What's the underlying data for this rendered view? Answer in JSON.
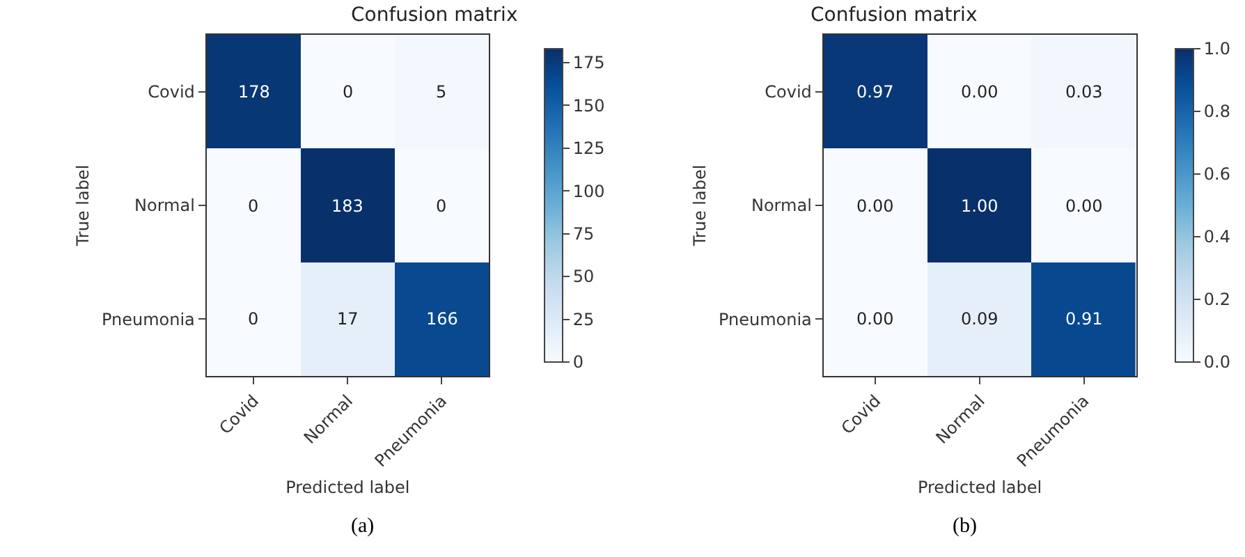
{
  "chart_data": [
    {
      "type": "heatmap",
      "title": "Confusion matrix",
      "xlabel": "Predicted label",
      "ylabel": "True label",
      "categories": [
        "Covid",
        "Normal",
        "Pneumonia"
      ],
      "y_categories": [
        "Covid",
        "Normal",
        "Pneumonia"
      ],
      "cells": [
        [
          178,
          0,
          5
        ],
        [
          0,
          183,
          0
        ],
        [
          0,
          17,
          166
        ]
      ],
      "data_labels": true,
      "clim": [
        0,
        183
      ],
      "cticks": [
        0,
        25,
        50,
        75,
        100,
        125,
        150,
        175
      ],
      "annotations": [
        "(a)"
      ]
    },
    {
      "type": "heatmap",
      "title": "Confusion matrix",
      "xlabel": "Predicted label",
      "ylabel": "True label",
      "categories": [
        "Covid",
        "Normal",
        "Pneumonia"
      ],
      "y_categories": [
        "Covid",
        "Normal",
        "Pneumonia"
      ],
      "cells": [
        [
          0.97,
          0.0,
          0.03
        ],
        [
          0.0,
          1.0,
          0.0
        ],
        [
          0.0,
          0.09,
          0.91
        ]
      ],
      "cell_labels": [
        [
          "0.97",
          "0.00",
          "0.03"
        ],
        [
          "0.00",
          "1.00",
          "0.00"
        ],
        [
          "0.00",
          "0.09",
          "0.91"
        ]
      ],
      "clim": [
        0,
        1.0
      ],
      "cticks": [
        {
          "value": 0,
          "label": "0.0"
        },
        {
          "value": 0.2,
          "label": "0.2"
        },
        {
          "value": 0.4,
          "label": "0.4"
        },
        {
          "value": 0.6,
          "label": "0.6"
        },
        {
          "value": 0.8,
          "label": "0.8"
        },
        {
          "value": 1.0,
          "label": "1.0"
        }
      ],
      "annotations": [
        "(b)"
      ]
    }
  ]
}
